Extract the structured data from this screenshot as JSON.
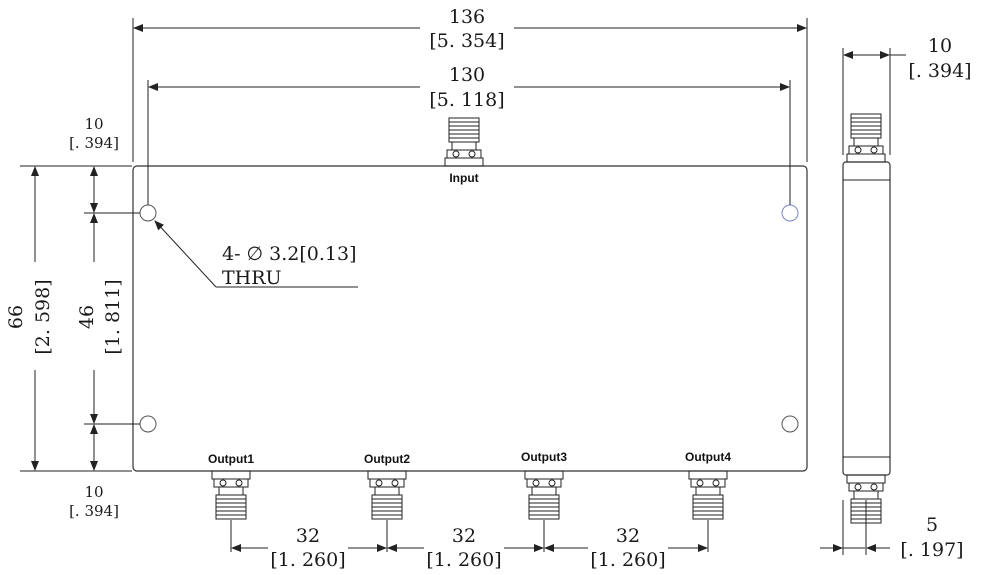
{
  "dimensions": {
    "overall_length": {
      "mm": "136",
      "inch": "[5. 354]"
    },
    "hole_spacing_length": {
      "mm": "130",
      "inch": "[5. 118]"
    },
    "top_offset": {
      "mm": "10",
      "inch": "[. 394]"
    },
    "bottom_offset": {
      "mm": "10",
      "inch": "[. 394]"
    },
    "overall_height": {
      "mm": "66",
      "inch": "[2. 598]"
    },
    "hole_spacing_height": {
      "mm": "46",
      "inch": "[1. 811]"
    },
    "side_thickness": {
      "mm": "10",
      "inch": "[. 394]"
    },
    "side_offset": {
      "mm": "5",
      "inch": "[. 197]"
    },
    "output_pitch": [
      {
        "mm": "32",
        "inch": "[1. 260]"
      },
      {
        "mm": "32",
        "inch": "[1. 260]"
      },
      {
        "mm": "32",
        "inch": "[1. 260]"
      }
    ]
  },
  "hole_note": {
    "line1": "4- ∅ 3.2[0.13]",
    "line2": "THRU"
  },
  "ports": {
    "input": "Input",
    "outputs": [
      "Output1",
      "Output2",
      "Output3",
      "Output4"
    ]
  }
}
